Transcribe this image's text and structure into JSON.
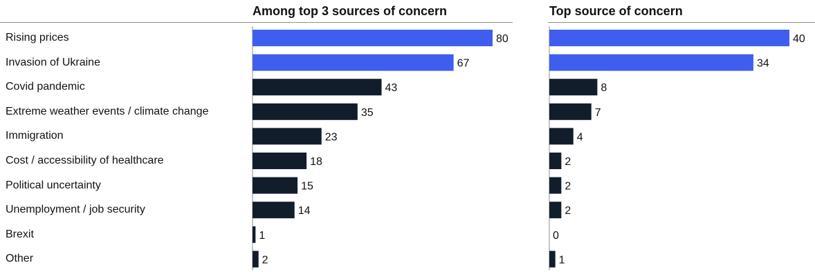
{
  "chart_data": {
    "type": "bar",
    "orientation": "horizontal",
    "categories": [
      "Rising prices",
      "Invasion of Ukraine",
      "Covid pandemic",
      "Extreme weather events / climate change",
      "Immigration",
      "Cost / accessibility of healthcare",
      "Political uncertainty",
      "Unemployment / job security",
      "Brexit",
      "Other"
    ],
    "panels": [
      {
        "title": "Among top 3 sources of concern",
        "values": [
          80,
          67,
          43,
          35,
          23,
          18,
          15,
          14,
          1,
          2
        ],
        "xlim": [
          0,
          80
        ]
      },
      {
        "title": "Top source of concern",
        "values": [
          40,
          34,
          8,
          7,
          4,
          2,
          2,
          2,
          0,
          1
        ],
        "xlim": [
          0,
          40
        ]
      }
    ],
    "highlight_count": 2,
    "colors": {
      "highlight": "#3f5ef0",
      "default": "#121d2b",
      "axis": "#8c8c8c"
    },
    "grid": false,
    "legend": "none"
  }
}
